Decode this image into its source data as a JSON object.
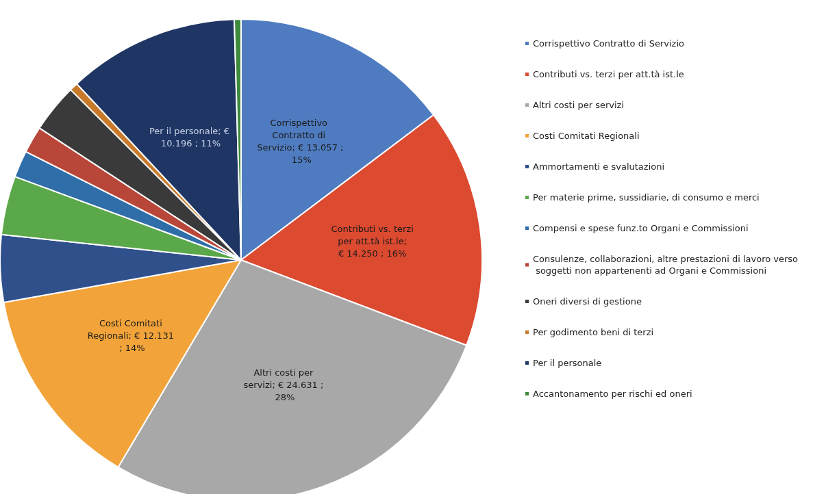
{
  "chart_data": {
    "type": "pie",
    "categories": [
      "Corrispettivo Contratto di Servizio",
      "Contributi vs. terzi per att.tà ist.le",
      "Altri costi per servizi",
      "Costi Comitati Regionali",
      "Ammortamenti e svalutazioni",
      "Per materie prime, sussidiarie, di consumo e merci",
      "Compensi e spese funz.to Organi e Commissioni",
      "Consulenze, collaborazioni, altre prestazioni di lavoro verso soggetti non appartenenti ad Organi e Commissioni",
      "Oneri diversi di gestione",
      "Per godimento beni di terzi",
      "Per il personale",
      "Accantonamento per rischi ed oneri"
    ],
    "values": [
      13057,
      14250,
      24631,
      12131,
      4000,
      3500,
      1600,
      1600,
      2900,
      500,
      10196,
      400
    ],
    "value_labels": [
      "Corrispettivo Contratto di Servizio; € 13.057 ; 15%",
      "Contributi vs. terzi per att.tà ist.le; € 14.250 ; 16%",
      "Altri costi per servizi; € 24.631 ; 28%",
      "Costi Comitati Regionali; € 12.131 ; 14%",
      null,
      null,
      null,
      null,
      null,
      null,
      "Per il personale; € 10.196 ; 11%",
      null
    ],
    "colors": [
      "#4f7cc0",
      "#dc4a30",
      "#a8a8a8",
      "#f2a43a",
      "#30508c",
      "#5aa84a",
      "#2f6ea8",
      "#b8473a",
      "#3a3a3a",
      "#c8792a",
      "#1f3563",
      "#3d8a3d"
    ],
    "legend": "right"
  }
}
